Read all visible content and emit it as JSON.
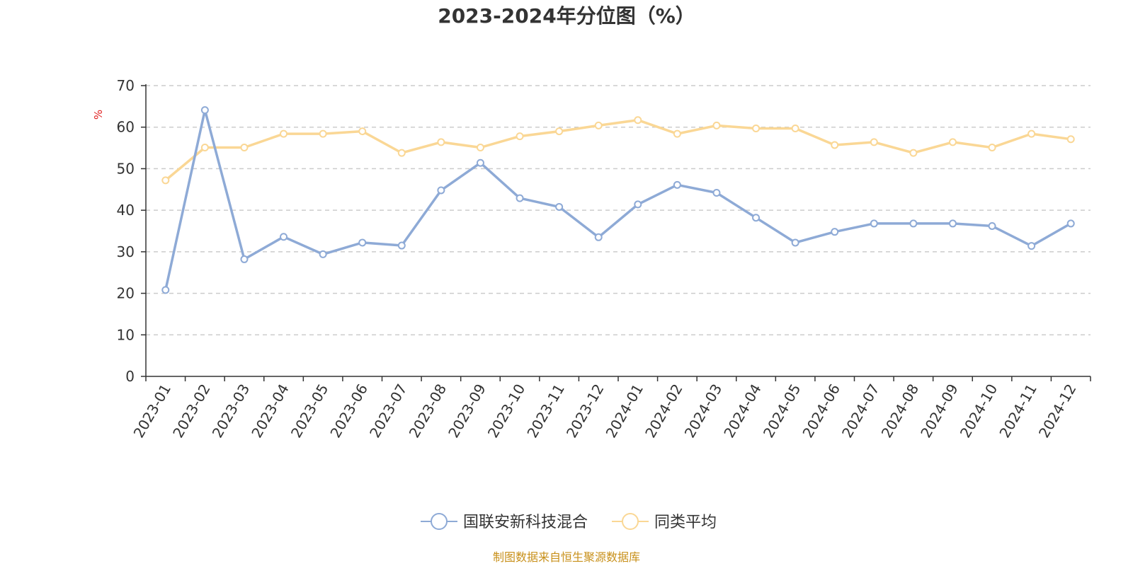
{
  "chart_data": {
    "type": "line",
    "title": "2023-2024年分位图（%）",
    "ylabel": "%",
    "ylim": [
      0,
      70
    ],
    "yticks": [
      0,
      10,
      20,
      30,
      40,
      50,
      60,
      70
    ],
    "grid": true,
    "legend_position": "bottom",
    "categories": [
      "2023-01",
      "2023-02",
      "2023-03",
      "2023-04",
      "2023-05",
      "2023-06",
      "2023-07",
      "2023-08",
      "2023-09",
      "2023-10",
      "2023-11",
      "2023-12",
      "2024-01",
      "2024-02",
      "2024-03",
      "2024-04",
      "2024-05",
      "2024-06",
      "2024-07",
      "2024-08",
      "2024-09",
      "2024-10",
      "2024-11",
      "2024-12"
    ],
    "series": [
      {
        "name": "国联安新科技混合",
        "color": "#8eaad6",
        "values": [
          20.8,
          64.1,
          28.2,
          33.6,
          29.4,
          32.2,
          31.5,
          44.8,
          51.4,
          42.9,
          40.8,
          33.5,
          41.4,
          46.1,
          44.2,
          38.2,
          32.2,
          34.8,
          36.8,
          36.8,
          36.8,
          36.2,
          31.4,
          36.8
        ]
      },
      {
        "name": "同类平均",
        "color": "#fad795",
        "values": [
          47.2,
          55.1,
          55.1,
          58.4,
          58.4,
          59.0,
          53.8,
          56.4,
          55.1,
          57.8,
          59.0,
          60.4,
          61.7,
          58.4,
          60.4,
          59.7,
          59.7,
          55.7,
          56.4,
          53.8,
          56.4,
          55.1,
          58.4,
          57.1
        ]
      }
    ],
    "source": "制图数据来自恒生聚源数据库"
  }
}
